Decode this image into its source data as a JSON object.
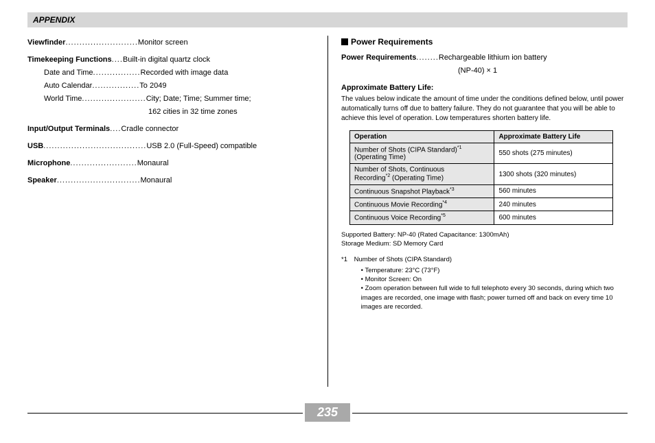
{
  "header": "APPENDIX",
  "pageNumber": "235",
  "left": {
    "viewfinder": {
      "label": "Viewfinder",
      "dots": " ..........................",
      "value": "Monitor screen"
    },
    "timekeeping": {
      "label": "Timekeeping Functions",
      "dots": " ....",
      "value": "Built-in digital quartz clock"
    },
    "datetime": {
      "label": "Date and Time",
      "dots": " .................",
      "value": "Recorded with image data"
    },
    "autocal": {
      "label": "Auto Calendar",
      "dots": " .................",
      "value": "To 2049"
    },
    "worldtime": {
      "label": "World Time",
      "dots": " .......................",
      "value": "City; Date; Time; Summer time;"
    },
    "worldtime2": "162 cities in 32 time zones",
    "io": {
      "label": "Input/Output Terminals",
      "dots": " ....",
      "value": "Cradle connector"
    },
    "usb": {
      "label": "USB",
      "dots": " .....................................",
      "value": "USB 2.0 (Full-Speed) compatible"
    },
    "mic": {
      "label": "Microphone",
      "dots": " ........................",
      "value": "Monaural"
    },
    "speaker": {
      "label": "Speaker",
      "dots": " ..............................",
      "value": "Monaural"
    }
  },
  "right": {
    "sectionTitle": "Power Requirements",
    "pr": {
      "label": "Power Requirements",
      "dots": " ........",
      "value": "Rechargeable lithium ion battery"
    },
    "pr2": "(NP-40) × 1",
    "subhead": "Approximate Battery Life:",
    "paragraph": "The values below indicate the amount of time under the conditions defined below, until power automatically turns off due to battery failure. They do not guarantee that you will be able to achieve this level of operation. Low temperatures shorten battery life.",
    "table": {
      "h1": "Operation",
      "h2": "Approximate Battery Life",
      "rows": [
        {
          "op": "Number of Shots (CIPA Standard)*1 (Operating Time)",
          "sup": "1",
          "opText1": "Number of Shots (CIPA Standard)",
          "opText2": "(Operating Time)",
          "val": "550 shots (275 minutes)"
        },
        {
          "op": "Number of Shots, Continuous Recording*2 (Operating Time)",
          "sup": "2",
          "opText1": "Number of Shots, Continuous",
          "opText2a": "Recording",
          "opText2b": " (Operating Time)",
          "val": "1300 shots (320 minutes)"
        },
        {
          "op": "Continuous Snapshot Playback*3",
          "sup": "3",
          "opText": "Continuous Snapshot Playback",
          "val": "560 minutes"
        },
        {
          "op": "Continuous Movie Recording*4",
          "sup": "4",
          "opText": "Continuous Movie Recording",
          "val": "240 minutes"
        },
        {
          "op": "Continuous Voice Recording*5",
          "sup": "5",
          "opText": "Continuous Voice Recording",
          "val": "600 minutes"
        }
      ]
    },
    "note1": "Supported Battery: NP-40 (Rated Capacitance: 1300mAh)",
    "note2": "Storage Medium: SD Memory Card",
    "footnote": {
      "num": "*1",
      "title": "Number of Shots (CIPA Standard)",
      "b1": "Temperature: 23°C (73°F)",
      "b2": "Monitor Screen: On",
      "b3": "Zoom operation between full wide to full telephoto every 30 seconds, during which two images are recorded, one image with flash; power turned off and back on every time 10 images are recorded."
    }
  }
}
